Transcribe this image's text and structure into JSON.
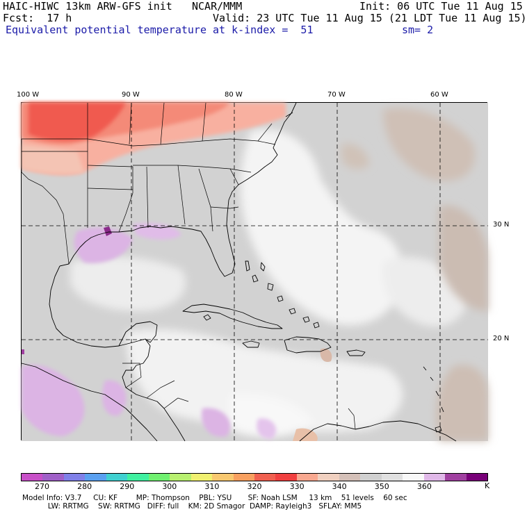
{
  "header": {
    "model": "HAIC-HIWC 13km ARW-GFS init",
    "org": "NCAR/MMM",
    "init": "Init: 06 UTC Tue 11 Aug 15",
    "fcst": "Fcst:  17 h",
    "valid": "Valid: 23 UTC Tue 11 Aug 15 (21 LDT Tue 11 Aug 15)",
    "field": "Equivalent potential temperature",
    "level": "at k-index =  51",
    "smooth": "sm= 2"
  },
  "map": {
    "lon_labels": [
      "100 W",
      "90 W",
      "80 W",
      "70 W",
      "60 W"
    ],
    "lat_labels": [
      "30 N",
      "20 N"
    ],
    "grid_color": "#000000",
    "land_outline_color": "#000000"
  },
  "colorbar": {
    "colors": [
      "#c850c8",
      "#a060c8",
      "#8080e8",
      "#5aa0f0",
      "#40d0d0",
      "#40f0a0",
      "#70f070",
      "#b8f070",
      "#f0f070",
      "#f8c870",
      "#f8a060",
      "#f06050",
      "#f04040",
      "#f8a890",
      "#f0d0c0",
      "#d4c0b8",
      "#d0d0d0",
      "#e0e0e0",
      "#f8f8f8",
      "#e0b8e8",
      "#a040a0",
      "#780078"
    ],
    "labels": [
      "270",
      "280",
      "290",
      "300",
      "310",
      "320",
      "330",
      "340",
      "350",
      "360"
    ],
    "unit": "K"
  },
  "footer": {
    "line1": "Model Info: V3.7     CU: KF        MP: Thompson    PBL: YSU       SF: Noah LSM     13 km    51 levels    60 sec",
    "line2": "           LW: RRTMG    SW: RRTMG   DIFF: full    KM: 2D Smagor  DAMP: Rayleigh3   SFLAY: MM5"
  }
}
